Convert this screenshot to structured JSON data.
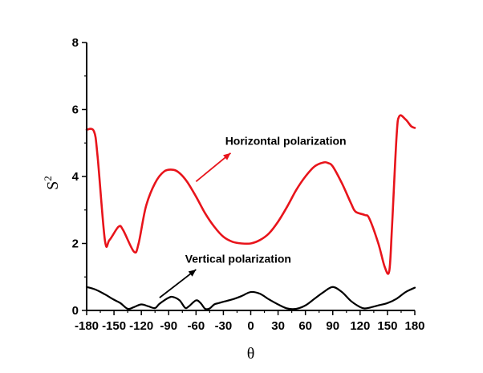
{
  "chart_data": {
    "type": "line",
    "title": "",
    "xlabel": "θ",
    "ylabel": {
      "base": "S",
      "sup": "2"
    },
    "xlim": [
      -180,
      180
    ],
    "ylim": [
      0,
      8
    ],
    "x_ticks": [
      -180,
      -150,
      -120,
      -90,
      -60,
      -30,
      0,
      30,
      60,
      90,
      120,
      150,
      180
    ],
    "x_tick_labels": [
      "-180",
      "-150",
      "-120",
      "-90",
      "-60",
      "-30",
      "0",
      "30",
      "60",
      "90",
      "120",
      "150",
      "180"
    ],
    "y_ticks": [
      0,
      2,
      4,
      6,
      8
    ],
    "y_tick_labels": [
      "0",
      "2",
      "4",
      "6",
      "8"
    ],
    "grid": false,
    "series": [
      {
        "name": "Horizontal polarization",
        "color": "#e8141b",
        "x": [
          -180,
          -172,
          -168,
          -160,
          -155,
          -145,
          -140,
          -128,
          -123,
          -115,
          -105,
          -95,
          -85,
          -78,
          -70,
          -60,
          -50,
          -40,
          -30,
          -20,
          -10,
          0,
          10,
          20,
          30,
          40,
          50,
          60,
          70,
          80,
          85,
          90,
          100,
          110,
          115,
          125,
          130,
          140,
          147,
          152,
          155,
          160,
          163,
          170,
          176,
          180
        ],
        "y": [
          5.4,
          5.35,
          4.6,
          2.1,
          2.1,
          2.5,
          2.4,
          1.75,
          2.0,
          3.1,
          3.8,
          4.15,
          4.2,
          4.1,
          3.85,
          3.4,
          2.9,
          2.5,
          2.2,
          2.05,
          2.0,
          2.0,
          2.1,
          2.3,
          2.65,
          3.1,
          3.6,
          4.0,
          4.3,
          4.42,
          4.4,
          4.3,
          3.8,
          3.2,
          2.95,
          2.85,
          2.75,
          2.0,
          1.3,
          1.18,
          2.5,
          5.2,
          5.8,
          5.7,
          5.5,
          5.45
        ]
      },
      {
        "name": "Vertical polarization",
        "color": "#000000",
        "x": [
          -180,
          -170,
          -160,
          -150,
          -143,
          -135,
          -128,
          -120,
          -112,
          -105,
          -100,
          -90,
          -85,
          -78,
          -72,
          -68,
          -60,
          -55,
          -50,
          -45,
          -40,
          -35,
          -30,
          -20,
          -10,
          0,
          10,
          20,
          30,
          40,
          50,
          60,
          70,
          80,
          90,
          100,
          110,
          120,
          125,
          130,
          140,
          150,
          160,
          170,
          180
        ],
        "y": [
          0.7,
          0.62,
          0.48,
          0.32,
          0.22,
          0.05,
          0.1,
          0.18,
          0.12,
          0.07,
          0.2,
          0.38,
          0.4,
          0.3,
          0.08,
          0.12,
          0.3,
          0.22,
          0.05,
          0.06,
          0.18,
          0.22,
          0.26,
          0.33,
          0.43,
          0.55,
          0.5,
          0.33,
          0.18,
          0.06,
          0.05,
          0.15,
          0.35,
          0.55,
          0.7,
          0.55,
          0.28,
          0.1,
          0.06,
          0.08,
          0.15,
          0.22,
          0.35,
          0.55,
          0.68
        ]
      }
    ],
    "annotations": [
      {
        "text": "Horizontal polarization",
        "color": "#e8141b",
        "label_x": -28,
        "label_y": 4.95,
        "arrow_from": [
          -60,
          3.85
        ],
        "arrow_to": [
          -22,
          4.7
        ]
      },
      {
        "text": "Vertical polarization",
        "color": "#000000",
        "label_x": -72,
        "label_y": 1.42,
        "arrow_from": [
          -100,
          0.38
        ],
        "arrow_to": [
          -60,
          1.22
        ]
      }
    ]
  }
}
